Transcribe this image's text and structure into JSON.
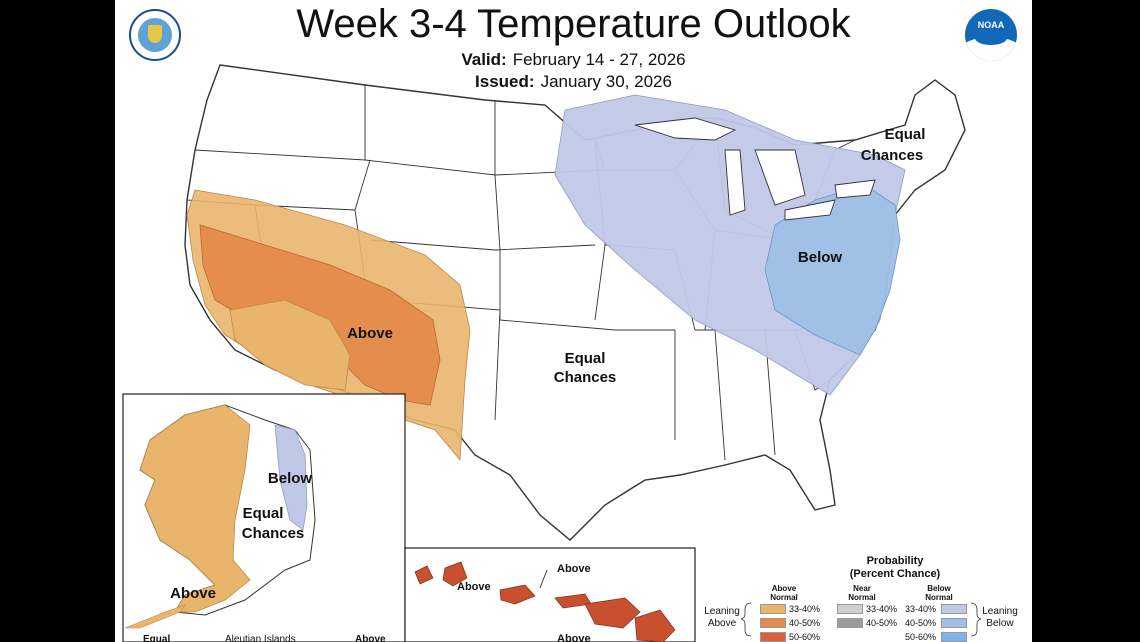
{
  "header": {
    "title": "Week 3-4 Temperature Outlook",
    "valid_label": "Valid:",
    "valid_value": "February 14 - 27, 2026",
    "issued_label": "Issued:",
    "issued_value": "January 30, 2026"
  },
  "logos": {
    "left": "us-department-of-commerce-seal",
    "right": "NOAA"
  },
  "map_labels": {
    "west_above": "Above",
    "central_equal_1": "Equal",
    "central_equal_2": "Chances",
    "east_below": "Below",
    "northeast_equal_1": "Equal",
    "northeast_equal_2": "Chances",
    "alaska_below": "Below",
    "alaska_equal_1": "Equal",
    "alaska_equal_2": "Chances",
    "alaska_above": "Above",
    "alaska_bottom_equal": "Equal",
    "alaska_aleutian": "Aleutian Islands",
    "alaska_bottom_above": "Above",
    "hawaii_above_1": "Above",
    "hawaii_above_2": "Above",
    "hawaii_above_3": "Above"
  },
  "legend": {
    "title_1": "Probability",
    "title_2": "(Percent Chance)",
    "above_head_1": "Above",
    "above_head_2": "Normal",
    "near_head_1": "Near",
    "near_head_2": "Normal",
    "below_head_1": "Below",
    "below_head_2": "Normal",
    "leaning_above_1": "Leaning",
    "leaning_above_2": "Above",
    "leaning_below_1": "Leaning",
    "leaning_below_2": "Below",
    "above_ranges": [
      "33-40%",
      "40-50%",
      "50-60%"
    ],
    "near_ranges": [
      "33-40%",
      "40-50%"
    ],
    "below_ranges": [
      "33-40%",
      "40-50%",
      "50-60%"
    ]
  },
  "colors": {
    "above_33_40": "#e9b56d",
    "above_40_50": "#e58a4a",
    "above_50_60": "#d9603b",
    "near_33_40": "#cfcfcf",
    "near_40_50": "#9c9c9c",
    "below_33_40": "#c0c8e8",
    "below_40_50": "#9fbfe6",
    "below_50_60": "#7fb2e5",
    "hawaii": "#c9502f",
    "boundary": "#333333"
  }
}
